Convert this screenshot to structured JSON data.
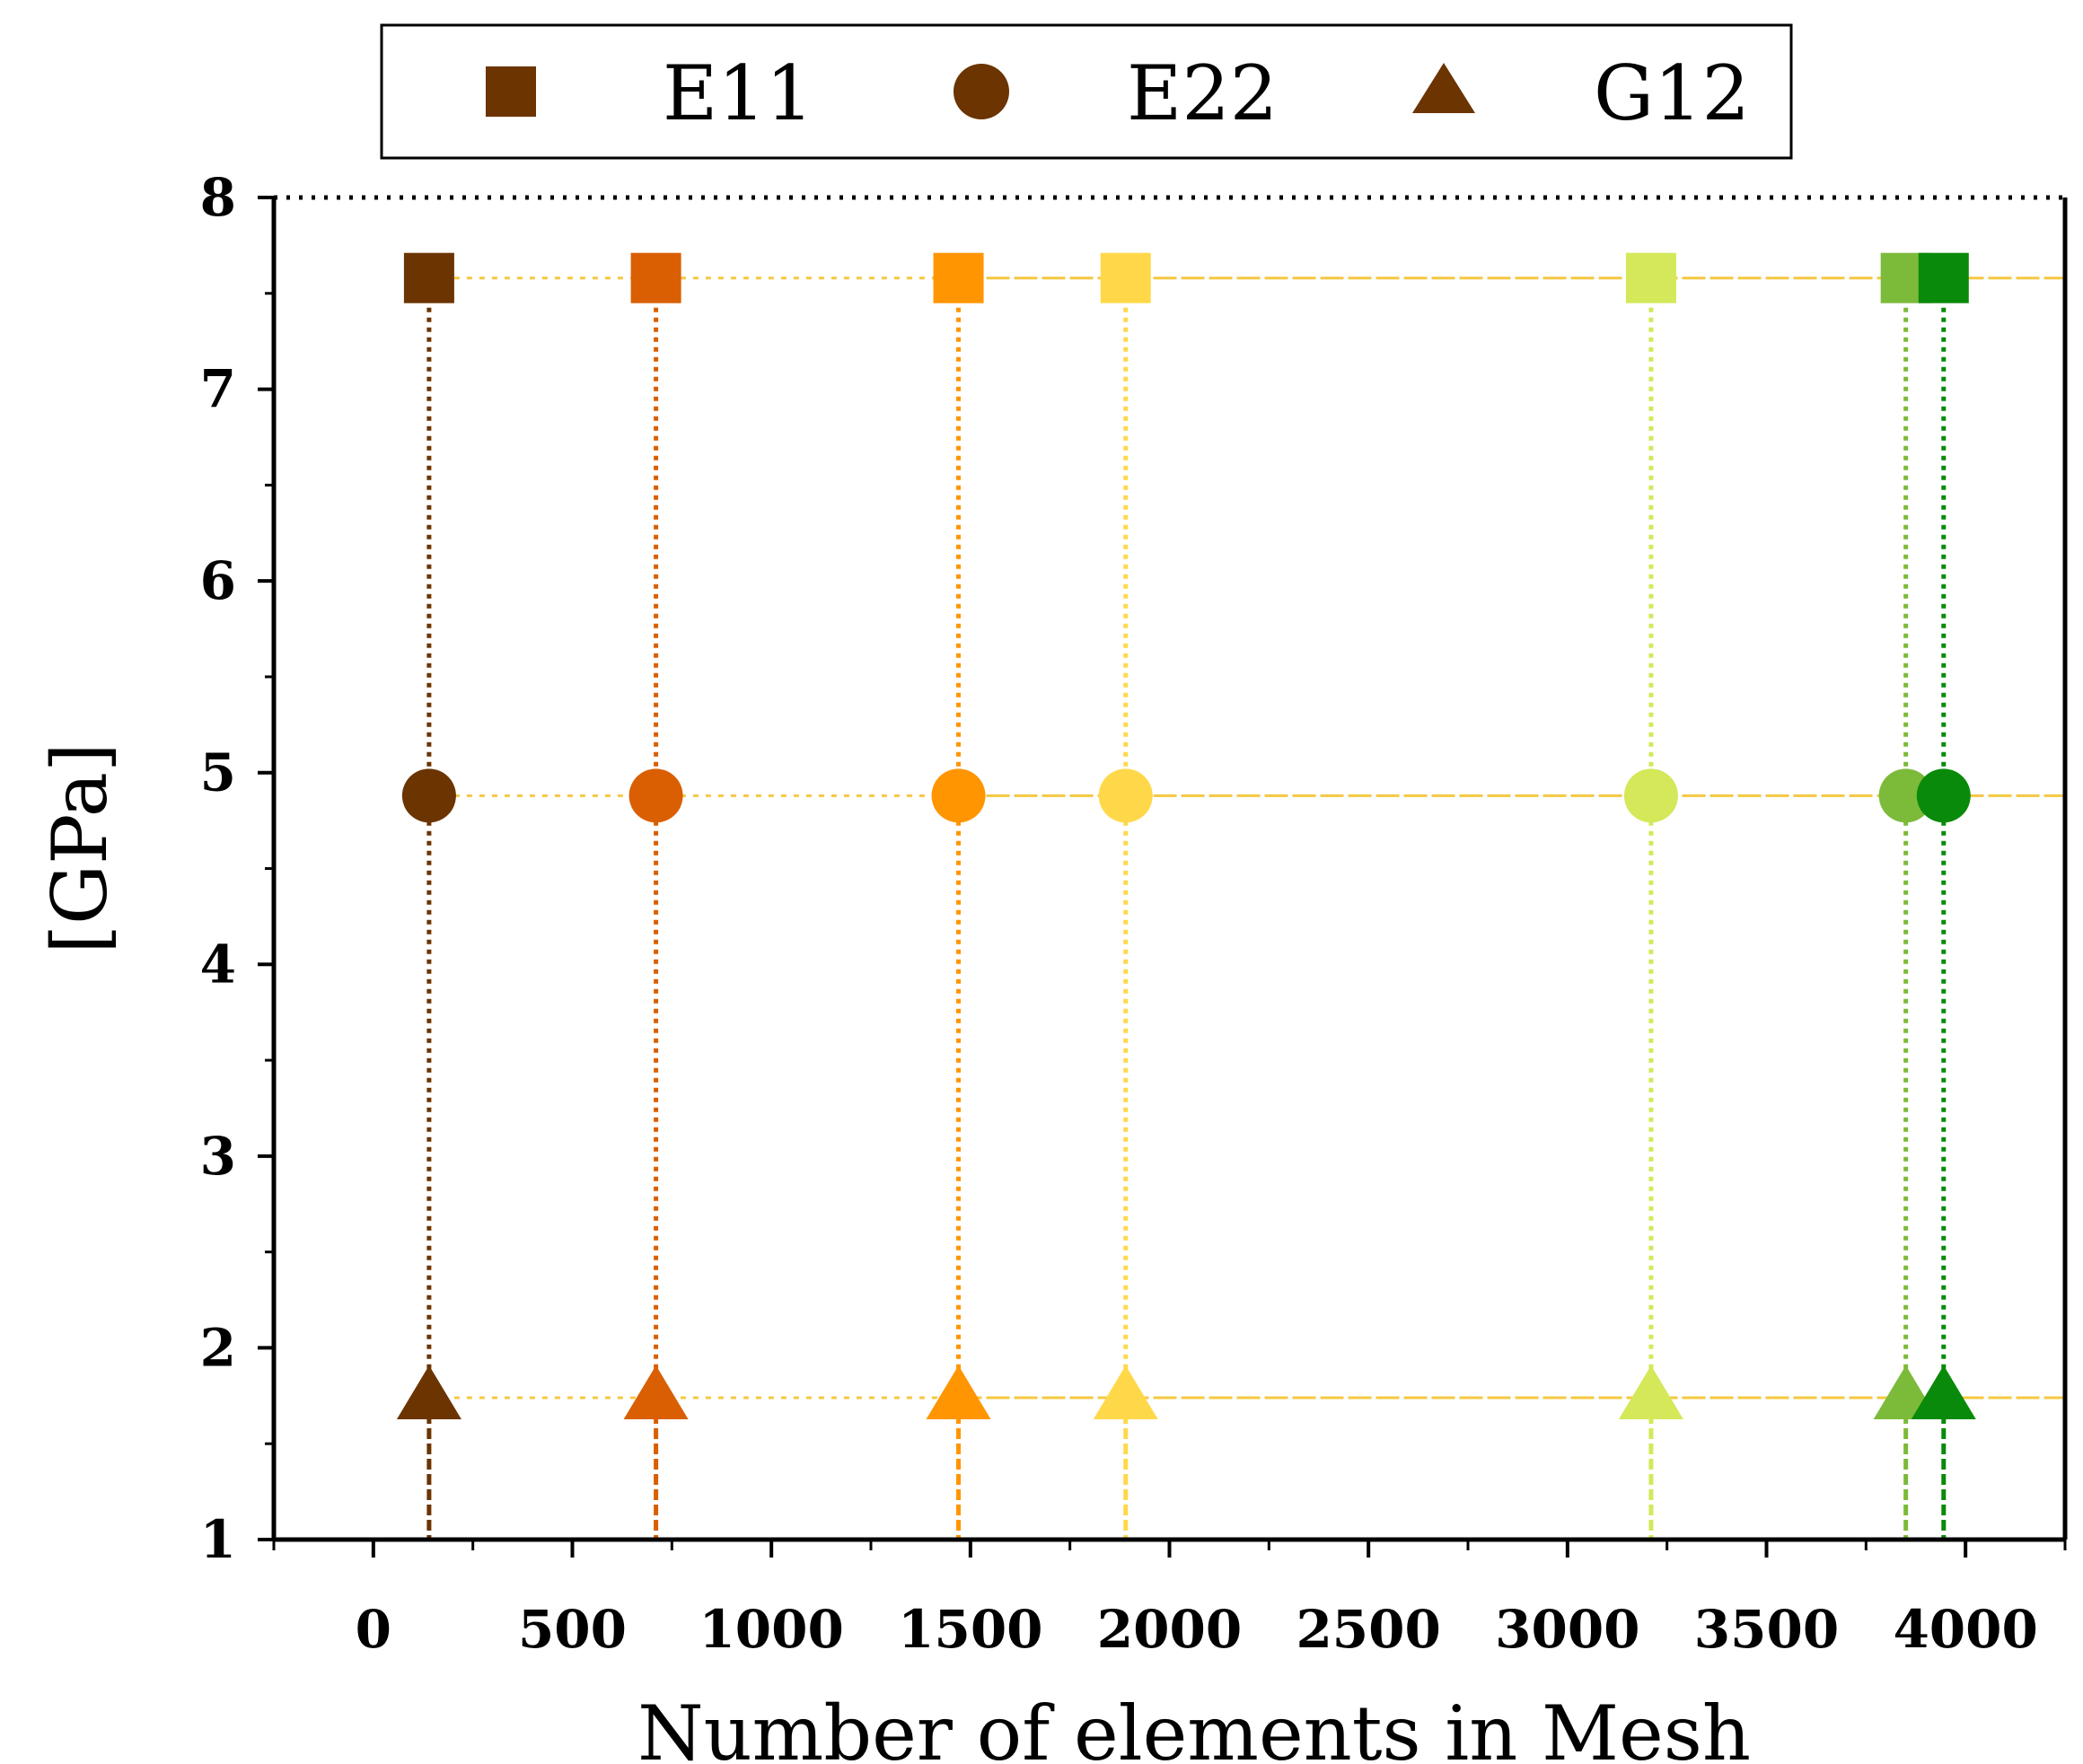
{
  "chart_data": {
    "type": "scatter",
    "title": "",
    "xlabel": "Number of elements in Mesh",
    "ylabel": "[GPa]",
    "xlim": [
      -250,
      4250
    ],
    "ylim": [
      1,
      8
    ],
    "x_ticks": [
      0,
      500,
      1000,
      1500,
      2000,
      2500,
      3000,
      3500,
      4000
    ],
    "x_tick_labels": [
      "0",
      "500",
      "1000",
      "1500",
      "2000",
      "2500",
      "3000",
      "3500",
      "4000"
    ],
    "y_ticks": [
      1,
      2,
      3,
      4,
      5,
      6,
      7,
      8
    ],
    "y_tick_labels": [
      "1",
      "2",
      "3",
      "4",
      "5",
      "6",
      "7",
      "8"
    ],
    "legend": {
      "position": "top",
      "entries": [
        {
          "label": "E11",
          "marker": "square"
        },
        {
          "label": "E22",
          "marker": "circle"
        },
        {
          "label": "G12",
          "marker": "triangle"
        }
      ],
      "color": "#6b3400"
    },
    "reference_lines": [
      {
        "series": "E11",
        "y": 7.58,
        "color": "#f5c842"
      },
      {
        "series": "E22",
        "y": 4.88,
        "color": "#f5c842"
      },
      {
        "series": "G12",
        "y": 1.74,
        "color": "#f5c842"
      }
    ],
    "mesh_points": [
      {
        "x": 140,
        "color": "#6b3400"
      },
      {
        "x": 710,
        "color": "#d95f02"
      },
      {
        "x": 1470,
        "color": "#ff9500"
      },
      {
        "x": 1890,
        "color": "#ffd84a"
      },
      {
        "x": 3210,
        "color": "#d4e85a"
      },
      {
        "x": 3850,
        "color": "#7cba3a"
      },
      {
        "x": 3945,
        "color": "#0a8a0a"
      }
    ],
    "series": [
      {
        "name": "E11",
        "marker": "square",
        "values": [
          7.58,
          7.58,
          7.58,
          7.58,
          7.58,
          7.58,
          7.58
        ]
      },
      {
        "name": "E22",
        "marker": "circle",
        "values": [
          4.88,
          4.88,
          4.88,
          4.88,
          4.88,
          4.88,
          4.88
        ]
      },
      {
        "name": "G12",
        "marker": "triangle",
        "values": [
          1.74,
          1.74,
          1.74,
          1.74,
          1.74,
          1.74,
          1.74
        ]
      }
    ]
  }
}
